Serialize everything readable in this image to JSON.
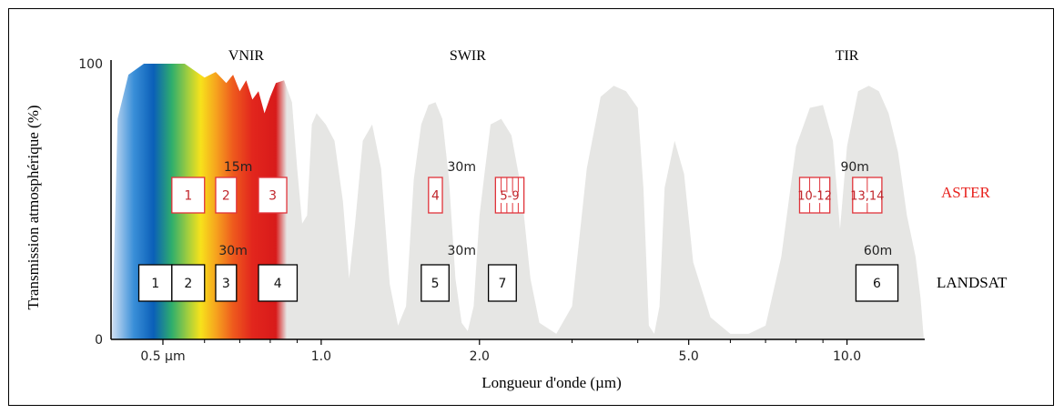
{
  "chart_data": {
    "type": "bar",
    "title": "",
    "xlabel": "Longueur d'onde (µm)",
    "ylabel": "Transmission atmosphérique (%)",
    "x_scale": "log",
    "xlim": [
      0.4,
      14.0
    ],
    "ylim": [
      0,
      100
    ],
    "x_ticks": [
      {
        "value": 0.5,
        "label": "0.5 µm"
      },
      {
        "value": 1.0,
        "label": "1.0"
      },
      {
        "value": 2.0,
        "label": "2.0"
      },
      {
        "value": 5.0,
        "label": "5.0"
      },
      {
        "value": 10.0,
        "label": "10.0"
      }
    ],
    "y_ticks": [
      {
        "value": 0,
        "label": "0"
      },
      {
        "value": 100,
        "label": "100"
      }
    ],
    "regions": [
      {
        "label": "VNIR",
        "x": 0.72
      },
      {
        "label": "SWIR",
        "x": 1.9
      },
      {
        "label": "TIR",
        "x": 10.0
      }
    ],
    "transmission_curve": [
      [
        0.4,
        0
      ],
      [
        0.41,
        80
      ],
      [
        0.43,
        96
      ],
      [
        0.46,
        100
      ],
      [
        0.5,
        100
      ],
      [
        0.55,
        100
      ],
      [
        0.6,
        95
      ],
      [
        0.63,
        97
      ],
      [
        0.66,
        93
      ],
      [
        0.68,
        96
      ],
      [
        0.7,
        90
      ],
      [
        0.72,
        94
      ],
      [
        0.74,
        87
      ],
      [
        0.76,
        90
      ],
      [
        0.78,
        82
      ],
      [
        0.8,
        88
      ],
      [
        0.82,
        93
      ],
      [
        0.85,
        94
      ],
      [
        0.88,
        86
      ],
      [
        0.9,
        62
      ],
      [
        0.92,
        42
      ],
      [
        0.94,
        45
      ],
      [
        0.96,
        78
      ],
      [
        0.98,
        82
      ],
      [
        1.02,
        78
      ],
      [
        1.06,
        72
      ],
      [
        1.1,
        50
      ],
      [
        1.13,
        22
      ],
      [
        1.16,
        42
      ],
      [
        1.2,
        72
      ],
      [
        1.25,
        78
      ],
      [
        1.3,
        62
      ],
      [
        1.35,
        20
      ],
      [
        1.4,
        5
      ],
      [
        1.45,
        12
      ],
      [
        1.5,
        58
      ],
      [
        1.55,
        78
      ],
      [
        1.6,
        85
      ],
      [
        1.65,
        86
      ],
      [
        1.7,
        80
      ],
      [
        1.75,
        58
      ],
      [
        1.8,
        22
      ],
      [
        1.85,
        6
      ],
      [
        1.9,
        3
      ],
      [
        1.95,
        12
      ],
      [
        2.0,
        45
      ],
      [
        2.05,
        62
      ],
      [
        2.1,
        78
      ],
      [
        2.2,
        80
      ],
      [
        2.3,
        74
      ],
      [
        2.4,
        55
      ],
      [
        2.5,
        22
      ],
      [
        2.6,
        6
      ],
      [
        2.8,
        2
      ],
      [
        3.0,
        12
      ],
      [
        3.2,
        62
      ],
      [
        3.4,
        88
      ],
      [
        3.6,
        92
      ],
      [
        3.8,
        90
      ],
      [
        4.0,
        84
      ],
      [
        4.1,
        55
      ],
      [
        4.2,
        5
      ],
      [
        4.3,
        2
      ],
      [
        4.4,
        12
      ],
      [
        4.5,
        55
      ],
      [
        4.7,
        72
      ],
      [
        4.9,
        60
      ],
      [
        5.1,
        28
      ],
      [
        5.5,
        8
      ],
      [
        6.0,
        2
      ],
      [
        6.5,
        2
      ],
      [
        7.0,
        5
      ],
      [
        7.5,
        30
      ],
      [
        8.0,
        70
      ],
      [
        8.5,
        84
      ],
      [
        9.0,
        85
      ],
      [
        9.4,
        72
      ],
      [
        9.7,
        40
      ],
      [
        10.0,
        70
      ],
      [
        10.5,
        90
      ],
      [
        11.0,
        92
      ],
      [
        11.5,
        90
      ],
      [
        12.0,
        82
      ],
      [
        12.5,
        68
      ],
      [
        13.0,
        45
      ],
      [
        13.5,
        30
      ],
      [
        13.8,
        15
      ],
      [
        14.0,
        0
      ]
    ],
    "resolution_labels": [
      {
        "label": "15m",
        "x": 0.695,
        "row": "aster"
      },
      {
        "label": "30m",
        "x": 1.85,
        "row": "aster"
      },
      {
        "label": "90m",
        "x": 10.35,
        "row": "aster"
      },
      {
        "label": "30m",
        "x": 0.68,
        "row": "landsat"
      },
      {
        "label": "30m",
        "x": 1.85,
        "row": "landsat"
      },
      {
        "label": "60m",
        "x": 11.45,
        "row": "landsat"
      }
    ],
    "series": [
      {
        "name": "ASTER",
        "bands": [
          {
            "label": "1",
            "x_start": 0.52,
            "x_end": 0.6
          },
          {
            "label": "2",
            "x_start": 0.63,
            "x_end": 0.69
          },
          {
            "label": "3",
            "x_start": 0.76,
            "x_end": 0.86
          },
          {
            "label": "4",
            "x_start": 1.6,
            "x_end": 1.7
          },
          {
            "label": "5-9",
            "x_start": 2.145,
            "x_end": 2.43,
            "subdivisions": 5
          },
          {
            "label": "10-12",
            "x_start": 8.125,
            "x_end": 9.275,
            "subdivisions": 3
          },
          {
            "label": "13,14",
            "x_start": 10.25,
            "x_end": 11.65,
            "subdivisions": 2
          }
        ]
      },
      {
        "name": "LANDSAT",
        "bands": [
          {
            "label": "1",
            "x_start": 0.45,
            "x_end": 0.52
          },
          {
            "label": "2",
            "x_start": 0.52,
            "x_end": 0.6
          },
          {
            "label": "3",
            "x_start": 0.63,
            "x_end": 0.69
          },
          {
            "label": "4",
            "x_start": 0.76,
            "x_end": 0.9
          },
          {
            "label": "5",
            "x_start": 1.55,
            "x_end": 1.75
          },
          {
            "label": "7",
            "x_start": 2.08,
            "x_end": 2.35
          },
          {
            "label": "6",
            "x_start": 10.4,
            "x_end": 12.5
          }
        ]
      }
    ],
    "colors": {
      "curve_fill": "#e6e6e4",
      "aster_stroke": "#e0333a",
      "aster_text": "#c1272d",
      "landsat_stroke": "#000000",
      "legend_aster": "#e8231f"
    }
  }
}
